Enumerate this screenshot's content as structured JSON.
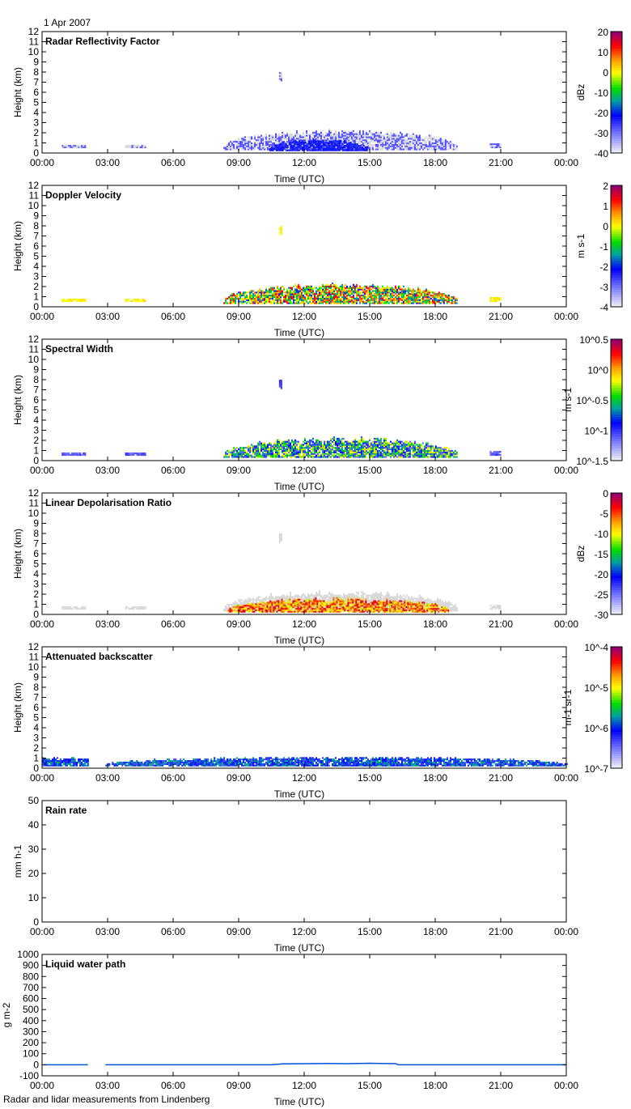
{
  "header": {
    "date": "1 Apr 2007"
  },
  "footer": {
    "caption": "Radar and lidar measurements from Lindenberg"
  },
  "chart_data": [
    {
      "type": "heatmap",
      "title": "Radar Reflectivity Factor",
      "xlabel": "Time (UTC)",
      "ylabel": "Height (km)",
      "xticks": [
        "00:00",
        "03:00",
        "06:00",
        "09:00",
        "12:00",
        "15:00",
        "18:00",
        "21:00",
        "00:00"
      ],
      "xlim": [
        0,
        24
      ],
      "ylim": [
        0,
        12
      ],
      "yticks": [
        "0",
        "1",
        "2",
        "3",
        "4",
        "5",
        "6",
        "7",
        "8",
        "9",
        "10",
        "11",
        "12"
      ],
      "colorbar": {
        "unit": "dBz",
        "ticks": [
          "-40",
          "-30",
          "-20",
          "-10",
          "0",
          "10",
          "20"
        ],
        "range": [
          -40,
          20
        ],
        "scale": "linear"
      },
      "echoes": [
        {
          "t": [
            0.9,
            2.0
          ],
          "z": [
            0.5,
            0.8
          ],
          "v": [
            -32,
            -28
          ]
        },
        {
          "t": [
            3.8,
            4.7
          ],
          "z": [
            0.5,
            0.8
          ],
          "v": [
            -32,
            -28
          ]
        },
        {
          "t": [
            8.3,
            19.0
          ],
          "z": [
            0.3,
            2.3
          ],
          "v": [
            -33,
            -27
          ]
        },
        {
          "t": [
            10.4,
            14.9
          ],
          "z": [
            0.2,
            1.3
          ],
          "v": [
            -26,
            -20
          ]
        },
        {
          "t": [
            10.85,
            10.95
          ],
          "z": [
            7.1,
            8.0
          ],
          "v": [
            -32,
            -28
          ]
        },
        {
          "t": [
            20.5,
            21.0
          ],
          "z": [
            0.5,
            0.9
          ],
          "v": [
            -32,
            -28
          ]
        }
      ]
    },
    {
      "type": "heatmap",
      "title": "Doppler Velocity",
      "xlabel": "Time (UTC)",
      "ylabel": "Height (km)",
      "xticks": [
        "00:00",
        "03:00",
        "06:00",
        "09:00",
        "12:00",
        "15:00",
        "18:00",
        "21:00",
        "00:00"
      ],
      "xlim": [
        0,
        24
      ],
      "ylim": [
        0,
        12
      ],
      "yticks": [
        "0",
        "1",
        "2",
        "3",
        "4",
        "5",
        "6",
        "7",
        "8",
        "9",
        "10",
        "11",
        "12"
      ],
      "colorbar": {
        "unit": "m s-1",
        "ticks": [
          "-4",
          "-3",
          "-2",
          "-1",
          "0",
          "1",
          "2"
        ],
        "range": [
          -4,
          2
        ],
        "scale": "linear"
      },
      "echoes": [
        {
          "t": [
            0.9,
            2.0
          ],
          "z": [
            0.5,
            0.8
          ],
          "v": [
            -0.2,
            0.2
          ]
        },
        {
          "t": [
            3.8,
            4.7
          ],
          "z": [
            0.5,
            0.8
          ],
          "v": [
            -0.2,
            0.2
          ]
        },
        {
          "t": [
            8.3,
            19.0
          ],
          "z": [
            0.3,
            2.3
          ],
          "v": [
            -2.2,
            1.6
          ]
        },
        {
          "t": [
            10.85,
            10.95
          ],
          "z": [
            7.1,
            8.0
          ],
          "v": [
            -0.2,
            0.1
          ]
        },
        {
          "t": [
            20.5,
            21.0
          ],
          "z": [
            0.5,
            0.9
          ],
          "v": [
            -0.2,
            0.2
          ]
        }
      ]
    },
    {
      "type": "heatmap",
      "title": "Spectral Width",
      "xlabel": "Time (UTC)",
      "ylabel": "Height (km)",
      "xticks": [
        "00:00",
        "03:00",
        "06:00",
        "09:00",
        "12:00",
        "15:00",
        "18:00",
        "21:00",
        "00:00"
      ],
      "xlim": [
        0,
        24
      ],
      "ylim": [
        0,
        12
      ],
      "yticks": [
        "0",
        "1",
        "2",
        "3",
        "4",
        "5",
        "6",
        "7",
        "8",
        "9",
        "10",
        "11",
        "12"
      ],
      "colorbar": {
        "unit": "m s-1",
        "ticks": [
          "10^-1.5",
          "10^-1",
          "10^-0.5",
          "10^0",
          "10^0.5"
        ],
        "range": [
          -1.5,
          0.5
        ],
        "scale": "log"
      },
      "echoes": [
        {
          "t": [
            0.9,
            2.0
          ],
          "z": [
            0.5,
            0.8
          ],
          "v": [
            -1.2,
            -1.0
          ]
        },
        {
          "t": [
            3.8,
            4.7
          ],
          "z": [
            0.5,
            0.8
          ],
          "v": [
            -1.2,
            -1.0
          ]
        },
        {
          "t": [
            8.3,
            19.0
          ],
          "z": [
            0.3,
            2.3
          ],
          "v": [
            -1.2,
            -0.1
          ]
        },
        {
          "t": [
            10.85,
            10.95
          ],
          "z": [
            7.1,
            8.0
          ],
          "v": [
            -1.1,
            -1.0
          ]
        },
        {
          "t": [
            20.5,
            21.0
          ],
          "z": [
            0.5,
            0.9
          ],
          "v": [
            -1.2,
            -1.0
          ]
        }
      ]
    },
    {
      "type": "heatmap",
      "title": "Linear Depolarisation Ratio",
      "xlabel": "Time (UTC)",
      "ylabel": "Height (km)",
      "xticks": [
        "00:00",
        "03:00",
        "06:00",
        "09:00",
        "12:00",
        "15:00",
        "18:00",
        "21:00",
        "00:00"
      ],
      "xlim": [
        0,
        24
      ],
      "ylim": [
        0,
        12
      ],
      "yticks": [
        "0",
        "1",
        "2",
        "3",
        "4",
        "5",
        "6",
        "7",
        "8",
        "9",
        "10",
        "11",
        "12"
      ],
      "colorbar": {
        "unit": "dBz",
        "ticks": [
          "-30",
          "-25",
          "-20",
          "-15",
          "-10",
          "-5",
          "0"
        ],
        "range": [
          -30,
          0
        ],
        "scale": "linear"
      },
      "echoes": [
        {
          "t": [
            0.9,
            2.0
          ],
          "z": [
            0.5,
            0.8
          ],
          "v": [
            -31,
            -30
          ]
        },
        {
          "t": [
            3.8,
            4.7
          ],
          "z": [
            0.5,
            0.8
          ],
          "v": [
            -31,
            -30
          ]
        },
        {
          "t": [
            8.3,
            19.0
          ],
          "z": [
            0.3,
            2.3
          ],
          "v": [
            -31,
            -30
          ]
        },
        {
          "t": [
            8.5,
            18.6
          ],
          "z": [
            0.2,
            1.6
          ],
          "v": [
            -12,
            -2
          ]
        },
        {
          "t": [
            10.85,
            10.95
          ],
          "z": [
            7.1,
            8.0
          ],
          "v": [
            -31,
            -30
          ]
        },
        {
          "t": [
            20.5,
            21.0
          ],
          "z": [
            0.5,
            0.9
          ],
          "v": [
            -31,
            -30
          ]
        }
      ]
    },
    {
      "type": "heatmap",
      "title": "Attenuated backscatter",
      "xlabel": "Time (UTC)",
      "ylabel": "Height (km)",
      "xticks": [
        "00:00",
        "03:00",
        "06:00",
        "09:00",
        "12:00",
        "15:00",
        "18:00",
        "21:00",
        "00:00"
      ],
      "xlim": [
        0,
        24
      ],
      "ylim": [
        0,
        12
      ],
      "yticks": [
        "0",
        "1",
        "2",
        "3",
        "4",
        "5",
        "6",
        "7",
        "8",
        "9",
        "10",
        "11",
        "12"
      ],
      "colorbar": {
        "unit": "m-1 sr-1",
        "ticks": [
          "10^-7",
          "10^-6",
          "10^-5",
          "10^-4"
        ],
        "range": [
          -7,
          -4
        ],
        "scale": "log"
      },
      "echoes": [
        {
          "t": [
            0.0,
            2.1
          ],
          "z": [
            0.2,
            1.0
          ],
          "v": [
            -6.4,
            -5.6
          ]
        },
        {
          "t": [
            2.9,
            24.0
          ],
          "z": [
            0.2,
            1.1
          ],
          "v": [
            -6.4,
            -5.6
          ]
        }
      ]
    },
    {
      "type": "line",
      "title": "Rain rate",
      "xlabel": "Time (UTC)",
      "ylabel": "mm h-1",
      "xticks": [
        "00:00",
        "03:00",
        "06:00",
        "09:00",
        "12:00",
        "15:00",
        "18:00",
        "21:00",
        "00:00"
      ],
      "xlim": [
        0,
        24
      ],
      "ylim": [
        0,
        50
      ],
      "yticks": [
        "0",
        "10",
        "20",
        "30",
        "40",
        "50"
      ],
      "series": []
    },
    {
      "type": "line",
      "title": "Liquid water path",
      "xlabel": "Time (UTC)",
      "ylabel": "g m-2",
      "xticks": [
        "00:00",
        "03:00",
        "06:00",
        "09:00",
        "12:00",
        "15:00",
        "18:00",
        "21:00",
        "00:00"
      ],
      "xlim": [
        0,
        24
      ],
      "ylim": [
        -100,
        1000
      ],
      "yticks": [
        "-100",
        "0",
        "100",
        "200",
        "300",
        "400",
        "500",
        "600",
        "700",
        "800",
        "900",
        "1000"
      ],
      "series": [
        {
          "segments": [
            {
              "x": [
                0.1,
                2.1
              ],
              "y": [
                0,
                0
              ]
            },
            {
              "x": [
                2.9,
                10.5,
                11.0,
                12.0,
                13.0,
                14.0,
                15.0,
                15.5,
                16.2,
                16.3,
                24.0
              ],
              "y": [
                0,
                0,
                8,
                10,
                12,
                10,
                14,
                12,
                10,
                0,
                0
              ]
            }
          ]
        }
      ]
    }
  ]
}
